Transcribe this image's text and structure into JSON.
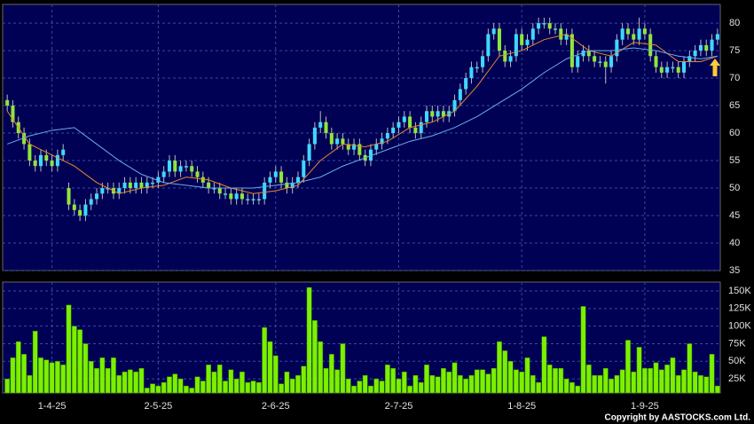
{
  "chart_data": [
    {
      "type": "candlestick",
      "open": [
        66,
        65,
        62,
        60,
        58,
        55,
        54,
        56,
        55,
        54,
        56,
        50,
        47,
        46,
        45,
        47,
        48,
        49,
        50,
        50,
        49,
        50,
        51,
        50,
        51,
        50,
        51,
        51,
        52,
        53,
        55,
        53,
        54,
        54,
        53,
        52,
        51,
        50,
        50,
        49,
        49,
        48,
        49,
        48,
        48,
        48,
        48,
        51,
        52,
        53,
        51,
        50,
        51,
        52,
        55,
        58,
        61,
        62,
        60,
        58,
        59,
        58,
        57,
        58,
        56,
        55,
        57,
        58,
        59,
        60,
        61,
        62,
        63,
        61,
        60,
        62,
        64,
        63,
        64,
        63,
        64,
        66,
        68,
        70,
        72,
        72,
        74,
        78,
        79,
        75,
        73,
        74,
        78,
        76,
        77,
        79,
        80,
        80,
        79,
        79,
        77,
        78,
        72,
        74,
        75,
        74,
        73,
        73,
        72,
        74,
        77,
        79,
        78,
        77,
        79,
        78,
        74,
        72,
        71,
        72,
        72,
        71,
        73,
        74,
        75,
        76,
        75,
        77
      ],
      "high": [
        67,
        66,
        63,
        61,
        59,
        56,
        57,
        57,
        56,
        57,
        58,
        51,
        48,
        47,
        48,
        49,
        50,
        51,
        51,
        51,
        51,
        52,
        52,
        52,
        52,
        52,
        52,
        53,
        54,
        56,
        56,
        55,
        55,
        55,
        54,
        53,
        52,
        51,
        51,
        50,
        50,
        50,
        50,
        49,
        49,
        49,
        52,
        53,
        54,
        54,
        52,
        52,
        53,
        56,
        59,
        62,
        64,
        63,
        61,
        60,
        60,
        59,
        59,
        59,
        57,
        58,
        59,
        60,
        61,
        62,
        63,
        64,
        64,
        62,
        63,
        65,
        65,
        65,
        65,
        65,
        67,
        69,
        71,
        73,
        73,
        75,
        79,
        80,
        80,
        76,
        75,
        79,
        79,
        78,
        80,
        81,
        81,
        81,
        80,
        80,
        79,
        79,
        75,
        76,
        76,
        75,
        74,
        74,
        75,
        78,
        80,
        80,
        79,
        81,
        80,
        79,
        75,
        73,
        73,
        73,
        73,
        74,
        75,
        76,
        77,
        77,
        78,
        79
      ],
      "low": [
        64,
        61,
        59,
        57,
        54,
        53,
        53,
        54,
        53,
        53,
        55,
        46,
        45,
        44,
        44,
        46,
        47,
        48,
        49,
        48,
        48,
        49,
        49,
        49,
        49,
        49,
        50,
        50,
        51,
        52,
        52,
        52,
        53,
        52,
        51,
        50,
        49,
        49,
        48,
        48,
        47,
        47,
        47,
        47,
        47,
        47,
        47,
        50,
        51,
        50,
        49,
        49,
        50,
        51,
        54,
        57,
        60,
        59,
        57,
        57,
        57,
        56,
        56,
        55,
        54,
        54,
        56,
        57,
        58,
        59,
        60,
        61,
        60,
        59,
        59,
        61,
        62,
        62,
        62,
        62,
        63,
        65,
        67,
        69,
        71,
        71,
        73,
        77,
        74,
        72,
        72,
        73,
        75,
        75,
        76,
        78,
        79,
        78,
        78,
        76,
        76,
        71,
        71,
        73,
        73,
        72,
        72,
        69,
        71,
        73,
        76,
        77,
        76,
        76,
        77,
        73,
        71,
        70,
        70,
        71,
        70,
        70,
        72,
        73,
        74,
        74,
        74,
        76
      ],
      "close": [
        65,
        62,
        60,
        58,
        55,
        54,
        56,
        55,
        54,
        56,
        57,
        47,
        46,
        45,
        47,
        48,
        49,
        50,
        50,
        49,
        50,
        51,
        50,
        51,
        50,
        51,
        51,
        52,
        53,
        55,
        53,
        54,
        54,
        53,
        52,
        51,
        50,
        50,
        49,
        49,
        48,
        49,
        48,
        48,
        48,
        48,
        51,
        52,
        53,
        51,
        50,
        51,
        52,
        55,
        58,
        61,
        62,
        60,
        58,
        59,
        58,
        57,
        58,
        56,
        55,
        57,
        58,
        59,
        60,
        61,
        62,
        63,
        61,
        60,
        62,
        64,
        63,
        64,
        63,
        64,
        66,
        68,
        70,
        72,
        72,
        74,
        78,
        79,
        75,
        73,
        74,
        78,
        76,
        77,
        79,
        80,
        80,
        79,
        79,
        77,
        78,
        72,
        74,
        75,
        74,
        73,
        73,
        72,
        74,
        77,
        79,
        78,
        77,
        79,
        78,
        74,
        72,
        71,
        72,
        72,
        71,
        73,
        74,
        75,
        76,
        75,
        77,
        78
      ],
      "up_color": "#3fd8ff",
      "down_color": "#8fe63a",
      "series": [
        {
          "color": "#e8872e",
          "x": [
            0,
            4,
            8,
            12,
            16,
            20,
            24,
            28,
            32,
            36,
            40,
            44,
            48,
            52,
            56,
            60,
            64,
            68,
            72,
            76,
            80,
            84,
            88,
            92,
            96,
            100,
            104,
            108,
            112,
            116,
            120,
            124,
            127
          ],
          "values": [
            64,
            58,
            56,
            54,
            51,
            49,
            50,
            50.5,
            52,
            51.5,
            50,
            49,
            49.5,
            50.5,
            55,
            58,
            57.5,
            58.5,
            61,
            62,
            64,
            68.5,
            74,
            75,
            77,
            78,
            75,
            74,
            76.5,
            76,
            73,
            73,
            74
          ]
        },
        {
          "color": "#6aaee8",
          "x": [
            0,
            4,
            8,
            12,
            16,
            20,
            24,
            28,
            32,
            36,
            40,
            44,
            48,
            52,
            56,
            60,
            64,
            68,
            72,
            76,
            80,
            84,
            88,
            92,
            96,
            100,
            104,
            108,
            112,
            116,
            120,
            124,
            127
          ],
          "values": [
            58,
            59.5,
            60.5,
            61,
            58,
            55,
            52.5,
            51,
            50.5,
            50,
            50,
            50,
            50.5,
            51,
            52,
            54,
            55.5,
            57,
            58.5,
            59.5,
            61,
            63,
            65.5,
            68,
            71,
            73.5,
            75,
            75,
            75.5,
            75,
            74,
            73.5,
            74
          ]
        }
      ],
      "ylim": [
        35,
        83.4
      ],
      "yticks": [
        35,
        40,
        45,
        50,
        55,
        60,
        65,
        70,
        75,
        80
      ],
      "grid": true
    },
    {
      "type": "bar",
      "color": "#7cf000",
      "values": [
        25000,
        55000,
        78000,
        60000,
        30000,
        93000,
        55000,
        52000,
        48000,
        50000,
        45000,
        130000,
        100000,
        95000,
        75000,
        50000,
        40000,
        55000,
        40000,
        55000,
        30000,
        35000,
        38000,
        35000,
        40000,
        12000,
        18000,
        15000,
        20000,
        28000,
        32000,
        25000,
        15000,
        12000,
        28000,
        22000,
        45000,
        35000,
        45000,
        22000,
        38000,
        25000,
        35000,
        20000,
        22000,
        20000,
        98000,
        78000,
        58000,
        18000,
        35000,
        25000,
        30000,
        43000,
        155000,
        108000,
        78000,
        40000,
        60000,
        38000,
        75000,
        25000,
        15000,
        22000,
        30000,
        15000,
        25000,
        22000,
        45000,
        40000,
        25000,
        35000,
        15000,
        30000,
        20000,
        45000,
        30000,
        28000,
        40000,
        35000,
        48000,
        30000,
        25000,
        30000,
        38000,
        38000,
        32000,
        40000,
        78000,
        65000,
        50000,
        38000,
        35000,
        55000,
        30000,
        20000,
        85000,
        45000,
        40000,
        40000,
        25000,
        20000,
        15000,
        128000,
        45000,
        30000,
        30000,
        40000,
        25000,
        30000,
        38000,
        80000,
        35000,
        70000,
        40000,
        40000,
        48000,
        38000,
        45000,
        55000,
        30000,
        38000,
        75000,
        35000,
        30000,
        28000,
        60000,
        15000
      ],
      "ylim": [
        5000,
        162600
      ],
      "yticks": [
        {
          "value": 25000,
          "label": "25K"
        },
        {
          "value": 50000,
          "label": "50K"
        },
        {
          "value": 75000,
          "label": "75K"
        },
        {
          "value": 100000,
          "label": "100K"
        },
        {
          "value": 125000,
          "label": "125K"
        },
        {
          "value": 150000,
          "label": "150K"
        }
      ],
      "xticks": [
        {
          "value": 8,
          "label": "1-4-25"
        },
        {
          "value": 27,
          "label": "2-5-25"
        },
        {
          "value": 48,
          "label": "2-6-25"
        },
        {
          "value": 70,
          "label": "2-7-25"
        },
        {
          "value": 92,
          "label": "1-8-25"
        },
        {
          "value": 114,
          "label": "1-9-25"
        }
      ],
      "grid": true
    }
  ],
  "copyright": "Copyright by AASTOCKS.com Ltd."
}
